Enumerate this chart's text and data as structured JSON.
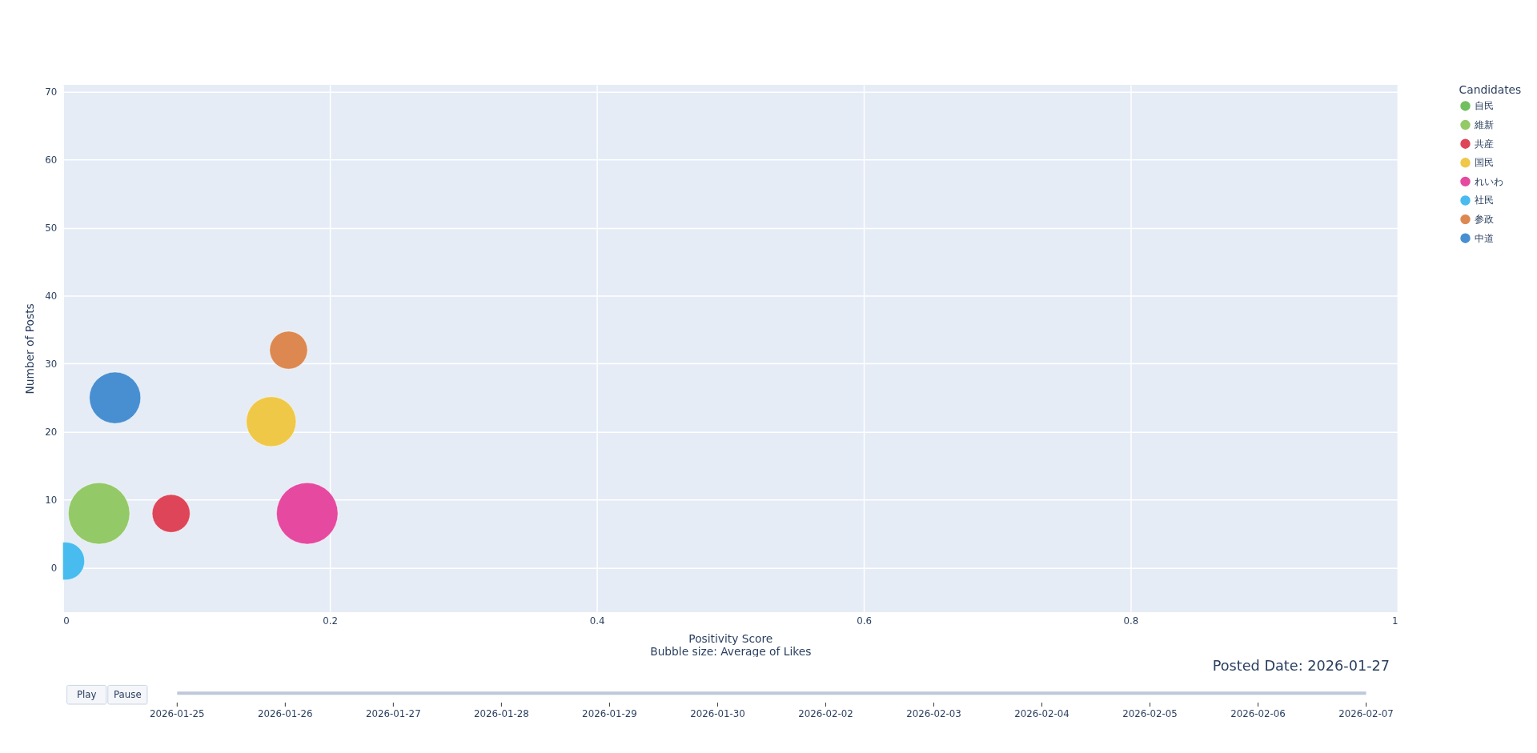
{
  "chart_data": {
    "type": "bubble",
    "xlabel": "Positivity Score\nBubble size: Average of Likes",
    "ylabel": "Number of Posts",
    "legend_title": "Candidates",
    "xlim": [
      0,
      1
    ],
    "xticks": [
      0,
      0.2,
      0.4,
      0.6,
      0.8,
      1
    ],
    "ylim": [
      -6.5,
      71
    ],
    "yticks": [
      0,
      10,
      20,
      30,
      40,
      50,
      60,
      70
    ],
    "grid": true,
    "legend": "top right",
    "series": [
      {
        "name": "自民",
        "color": "#72bf5f",
        "x": [
          null
        ],
        "values": [
          null
        ],
        "sizes": [
          null
        ]
      },
      {
        "name": "維新",
        "color": "#93c967",
        "x": [
          0.027
        ],
        "values": [
          8
        ],
        "sizes": [
          1
        ]
      },
      {
        "name": "共産",
        "color": "#de4559",
        "x": [
          0.081
        ],
        "values": [
          8
        ],
        "sizes": [
          0.38
        ]
      },
      {
        "name": "国民",
        "color": "#f0c848",
        "x": [
          0.156
        ],
        "values": [
          21.5
        ],
        "sizes": [
          0.66
        ]
      },
      {
        "name": "れいわ",
        "color": "#e54aa0",
        "x": [
          0.183
        ],
        "values": [
          8
        ],
        "sizes": [
          1
        ]
      },
      {
        "name": "社民",
        "color": "#48bcef",
        "x": [
          0.002
        ],
        "values": [
          1
        ],
        "sizes": [
          0.38
        ]
      },
      {
        "name": "参政",
        "color": "#dd8851",
        "x": [
          0.169
        ],
        "values": [
          32
        ],
        "sizes": [
          0.38
        ]
      },
      {
        "name": "中道",
        "color": "#478fd1",
        "x": [
          0.039
        ],
        "values": [
          25
        ],
        "sizes": [
          0.7
        ]
      }
    ],
    "annotations": [
      "Posted Date: 2026-01-27",
      "Play",
      "Pause",
      "2026-01-25",
      "2026-01-26",
      "2026-01-27",
      "2026-01-28",
      "2026-01-29",
      "2026-01-30",
      "2026-02-02",
      "2026-02-03",
      "2026-02-04",
      "2026-02-05",
      "2026-02-06",
      "2026-02-07"
    ]
  }
}
